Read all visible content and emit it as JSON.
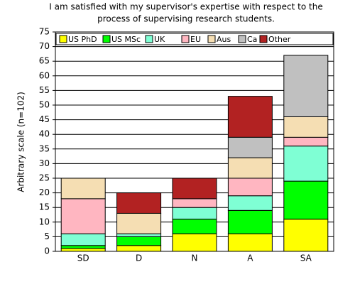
{
  "chart_data": {
    "type": "stacked-bar",
    "title": [
      "I am satisfied with my supervisor's expertise with respect to the",
      "process of supervising research students."
    ],
    "y_label": "Arbitrary scale (n=102)",
    "categories": [
      "SD",
      "D",
      "N",
      "A",
      "SA"
    ],
    "series": [
      {
        "name": "US PhD",
        "color": "#ffff00",
        "values": [
          1,
          2,
          6,
          6,
          11
        ]
      },
      {
        "name": "US MSc",
        "color": "#00ff00",
        "values": [
          1,
          3,
          5,
          8,
          13
        ]
      },
      {
        "name": "UK",
        "color": "#7fffd4",
        "values": [
          4,
          1,
          4,
          5,
          12
        ]
      },
      {
        "name": "EU",
        "color": "#ffb6c1",
        "values": [
          12,
          0,
          3,
          6,
          3
        ]
      },
      {
        "name": "Aus",
        "color": "#f5deb3",
        "values": [
          7,
          7,
          0,
          7,
          7
        ]
      },
      {
        "name": "Ca",
        "color": "#c0c0c0",
        "values": [
          0,
          0,
          0,
          7,
          21
        ]
      },
      {
        "name": "Other",
        "color": "#b22222",
        "values": [
          0,
          7,
          7,
          14,
          0
        ]
      }
    ],
    "ylim": [
      0,
      75
    ],
    "yticks": [
      0,
      5,
      10,
      15,
      20,
      25,
      30,
      35,
      40,
      45,
      50,
      55,
      60,
      65,
      70,
      75
    ],
    "grid": true
  }
}
